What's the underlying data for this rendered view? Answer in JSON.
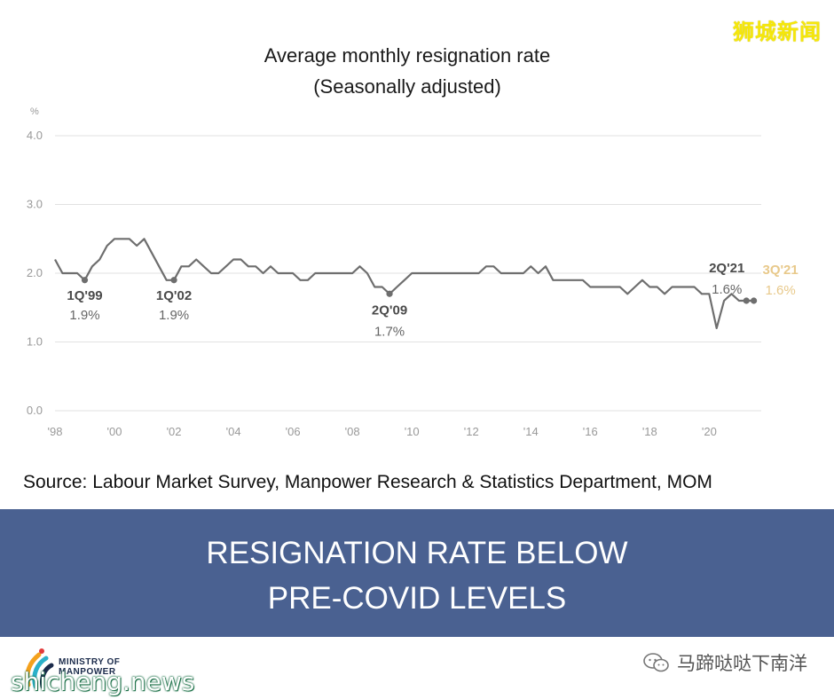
{
  "watermark_top": "狮城新闻",
  "chart_data": {
    "type": "line",
    "title": "Average monthly resignation rate",
    "subtitle": "(Seasonally adjusted)",
    "ylabel": "%",
    "ylim": [
      0,
      4
    ],
    "yticks": [
      0,
      1,
      2,
      3,
      4
    ],
    "ytick_labels": [
      "0.0",
      "1.0",
      "2.0",
      "3.0",
      "4.0"
    ],
    "xlim": [
      1998,
      2021.75
    ],
    "xticks": [
      1998,
      2000,
      2002,
      2004,
      2006,
      2008,
      2010,
      2012,
      2014,
      2016,
      2018,
      2020
    ],
    "xtick_labels": [
      "'98",
      "'00",
      "'02",
      "'04",
      "'06",
      "'08",
      "'10",
      "'12",
      "'14",
      "'16",
      "'18",
      "'20"
    ],
    "grid": true,
    "color": "#6e6e6e",
    "series": [
      {
        "x": [
          1998.0,
          1998.25,
          1998.5,
          1998.75,
          1999.0,
          1999.25,
          1999.5,
          1999.75,
          2000.0,
          2000.25,
          2000.5,
          2000.75,
          2001.0,
          2001.25,
          2001.5,
          2001.75,
          2002.0,
          2002.25,
          2002.5,
          2002.75,
          2003.0,
          2003.25,
          2003.5,
          2003.75,
          2004.0,
          2004.25,
          2004.5,
          2004.75,
          2005.0,
          2005.25,
          2005.5,
          2005.75,
          2006.0,
          2006.25,
          2006.5,
          2006.75,
          2007.0,
          2007.25,
          2007.5,
          2007.75,
          2008.0,
          2008.25,
          2008.5,
          2008.75,
          2009.0,
          2009.25,
          2009.5,
          2009.75,
          2010.0,
          2010.25,
          2010.5,
          2010.75,
          2011.0,
          2011.25,
          2011.5,
          2011.75,
          2012.0,
          2012.25,
          2012.5,
          2012.75,
          2013.0,
          2013.25,
          2013.5,
          2013.75,
          2014.0,
          2014.25,
          2014.5,
          2014.75,
          2015.0,
          2015.25,
          2015.5,
          2015.75,
          2016.0,
          2016.25,
          2016.5,
          2016.75,
          2017.0,
          2017.25,
          2017.5,
          2017.75,
          2018.0,
          2018.25,
          2018.5,
          2018.75,
          2019.0,
          2019.25,
          2019.5,
          2019.75,
          2020.0,
          2020.25,
          2020.5,
          2020.75,
          2021.0,
          2021.25,
          2021.5
        ],
        "y": [
          2.2,
          2.0,
          2.0,
          2.0,
          1.9,
          2.1,
          2.2,
          2.4,
          2.5,
          2.5,
          2.5,
          2.4,
          2.5,
          2.3,
          2.1,
          1.9,
          1.9,
          2.1,
          2.1,
          2.2,
          2.1,
          2.0,
          2.0,
          2.1,
          2.2,
          2.2,
          2.1,
          2.1,
          2.0,
          2.1,
          2.0,
          2.0,
          2.0,
          1.9,
          1.9,
          2.0,
          2.0,
          2.0,
          2.0,
          2.0,
          2.0,
          2.1,
          2.0,
          1.8,
          1.8,
          1.7,
          1.8,
          1.9,
          2.0,
          2.0,
          2.0,
          2.0,
          2.0,
          2.0,
          2.0,
          2.0,
          2.0,
          2.0,
          2.1,
          2.1,
          2.0,
          2.0,
          2.0,
          2.0,
          2.1,
          2.0,
          2.1,
          1.9,
          1.9,
          1.9,
          1.9,
          1.9,
          1.8,
          1.8,
          1.8,
          1.8,
          1.8,
          1.7,
          1.8,
          1.9,
          1.8,
          1.8,
          1.7,
          1.8,
          1.8,
          1.8,
          1.8,
          1.7,
          1.7,
          1.2,
          1.6,
          1.7,
          1.6,
          1.6,
          1.6
        ]
      }
    ],
    "annotations": [
      {
        "x": 1999.0,
        "y": 1.9,
        "label": "1Q'99",
        "value": "1.9%"
      },
      {
        "x": 2002.0,
        "y": 1.9,
        "label": "1Q'02",
        "value": "1.9%"
      },
      {
        "x": 2009.25,
        "y": 1.7,
        "label": "2Q'09",
        "value": "1.7%"
      },
      {
        "x": 2021.25,
        "y": 1.6,
        "label": "2Q'21",
        "value": "1.6%"
      },
      {
        "x": 2021.5,
        "y": 1.6,
        "label": "3Q'21",
        "value": "1.6%"
      }
    ]
  },
  "source_text": "Source: Labour Market Survey, Manpower Research & Statistics Department, MOM",
  "banner": {
    "line1": "RESIGNATION RATE BELOW",
    "line2": "PRE-COVID LEVELS",
    "background": "#4a6191"
  },
  "footer": {
    "logo_line1": "MINISTRY OF",
    "logo_line2": "MANPOWER",
    "site_watermark": "shicheng.news",
    "wechat_text": "马蹄哒哒下南洋"
  }
}
